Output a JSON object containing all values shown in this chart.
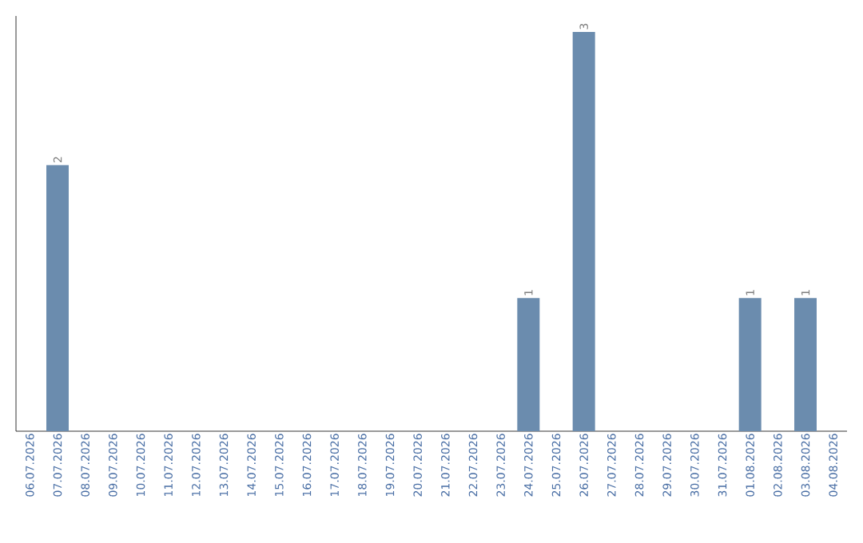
{
  "chart_data": {
    "type": "bar",
    "categories": [
      "06.07.2026",
      "07.07.2026",
      "08.07.2026",
      "09.07.2026",
      "10.07.2026",
      "11.07.2026",
      "12.07.2026",
      "13.07.2026",
      "14.07.2026",
      "15.07.2026",
      "16.07.2026",
      "17.07.2026",
      "18.07.2026",
      "19.07.2026",
      "20.07.2026",
      "21.07.2026",
      "22.07.2026",
      "23.07.2026",
      "24.07.2026",
      "25.07.2026",
      "26.07.2026",
      "27.07.2026",
      "28.07.2026",
      "29.07.2026",
      "30.07.2026",
      "31.07.2026",
      "01.08.2026",
      "02.08.2026",
      "03.08.2026",
      "04.08.2026"
    ],
    "values": [
      0,
      2,
      0,
      0,
      0,
      0,
      0,
      0,
      0,
      0,
      0,
      0,
      0,
      0,
      0,
      0,
      0,
      0,
      1,
      0,
      3,
      0,
      0,
      0,
      0,
      0,
      1,
      0,
      1,
      0
    ],
    "value_labels": [
      null,
      "2",
      null,
      null,
      null,
      null,
      null,
      null,
      null,
      null,
      null,
      null,
      null,
      null,
      null,
      null,
      null,
      null,
      "1",
      null,
      "3",
      null,
      null,
      null,
      null,
      null,
      "1",
      null,
      "1",
      null
    ],
    "color": "#6b8cae",
    "ylim": [
      0,
      3.12
    ],
    "tick_labels": "x"
  }
}
